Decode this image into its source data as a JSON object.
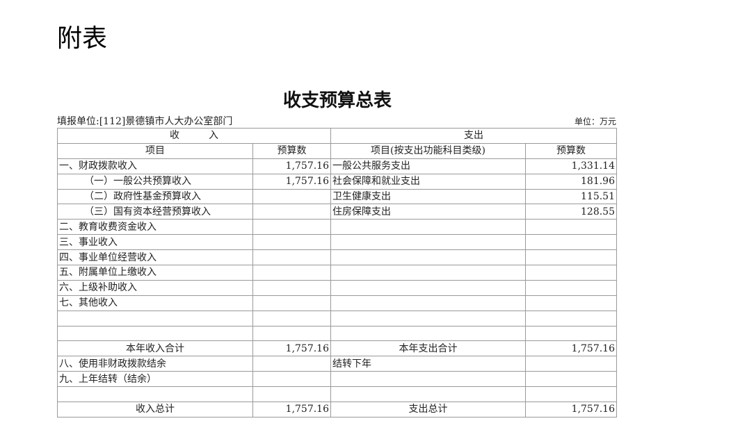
{
  "heading": "附表",
  "title": "收支预算总表",
  "unit_left": "填报单位:[112]景德镇市人大办公室部门",
  "unit_right": "单位：万元",
  "header": {
    "income": "收　　　入",
    "expense": "支出",
    "col1": "项目",
    "col2": "预算数",
    "col3": "项目(按支出功能科目类级)",
    "col4": "预算数"
  },
  "rows": [
    [
      "一、财政拨款收入",
      "1,757.16",
      "一般公共服务支出",
      "1,331.14"
    ],
    [
      "（一）一般公共预算收入",
      "1,757.16",
      "社会保障和就业支出",
      "181.96"
    ],
    [
      "（二）政府性基金预算收入",
      "",
      "卫生健康支出",
      "115.51"
    ],
    [
      "（三）国有资本经营预算收入",
      "",
      "住房保障支出",
      "128.55"
    ],
    [
      "二、教育收费资金收入",
      "",
      "",
      ""
    ],
    [
      "三、事业收入",
      "",
      "",
      ""
    ],
    [
      "四、事业单位经营收入",
      "",
      "",
      ""
    ],
    [
      "五、附属单位上缴收入",
      "",
      "",
      ""
    ],
    [
      "六、上级补助收入",
      "",
      "",
      ""
    ],
    [
      "七、其他收入",
      "",
      "",
      ""
    ],
    [
      "",
      "",
      "",
      ""
    ],
    [
      "",
      "",
      "",
      ""
    ],
    [
      "本年收入合计",
      "1,757.16",
      "本年支出合计",
      "1,757.16"
    ],
    [
      "八、使用非财政拨款结余",
      "",
      "结转下年",
      ""
    ],
    [
      "九、上年结转（结余）",
      "",
      "",
      ""
    ],
    [
      "",
      "",
      "",
      ""
    ],
    [
      "收入总计",
      "1,757.16",
      "支出总计",
      "1,757.16"
    ]
  ]
}
